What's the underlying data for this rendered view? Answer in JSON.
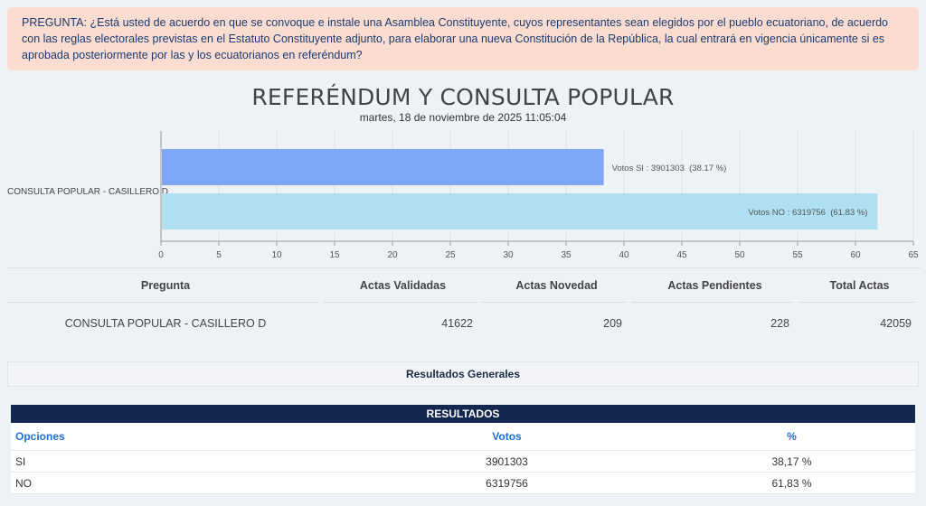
{
  "question": "PREGUNTA: ¿Está usted de acuerdo en que se convoque e instale una Asamblea Constituyente, cuyos representantes sean elegidos por el pueblo ecuatoriano, de acuerdo con las reglas electorales previstas en el Estatuto Constituyente adjunto, para elaborar una nueva Constitución de la República, la cual entrará en vigencia únicamente si es aprobada posteriormente por las y los ecuatorianos en referéndum?",
  "title": "REFERÉNDUM Y CONSULTA POPULAR",
  "subtitle": "martes, 18 de noviembre de 2025 11:05:04",
  "chart_data": {
    "type": "bar",
    "orientation": "horizontal",
    "categories": [
      "CONSULTA POPULAR - CASILLERO D"
    ],
    "series": [
      {
        "name": "Votos SI",
        "values": [
          38.17
        ],
        "votes": 3901303,
        "label": "Votos SI : 3901303  (38.17 %)",
        "color": "#7da7f5"
      },
      {
        "name": "Votos NO",
        "values": [
          61.83
        ],
        "votes": 6319756,
        "label": "Votos NO : 6319756  (61.83 %)",
        "color": "#aee0f2"
      }
    ],
    "xlim": [
      0,
      65
    ],
    "ticks": [
      0,
      5,
      10,
      15,
      20,
      25,
      30,
      35,
      40,
      45,
      50,
      55,
      60,
      65
    ],
    "grid": true
  },
  "actas_table": {
    "headers": [
      "Pregunta",
      "Actas Validadas",
      "Actas Novedad",
      "Actas Pendientes",
      "Total Actas"
    ],
    "row": [
      "CONSULTA POPULAR - CASILLERO D",
      "41622",
      "209",
      "228",
      "42059"
    ]
  },
  "resultados_generales": "Resultados Generales",
  "results": {
    "banner": "RESULTADOS",
    "headers": [
      "Opciones",
      "Votos",
      "%"
    ],
    "rows": [
      [
        "SI",
        "3901303",
        "38,17 %"
      ],
      [
        "NO",
        "6319756",
        "61,83 %"
      ]
    ]
  }
}
